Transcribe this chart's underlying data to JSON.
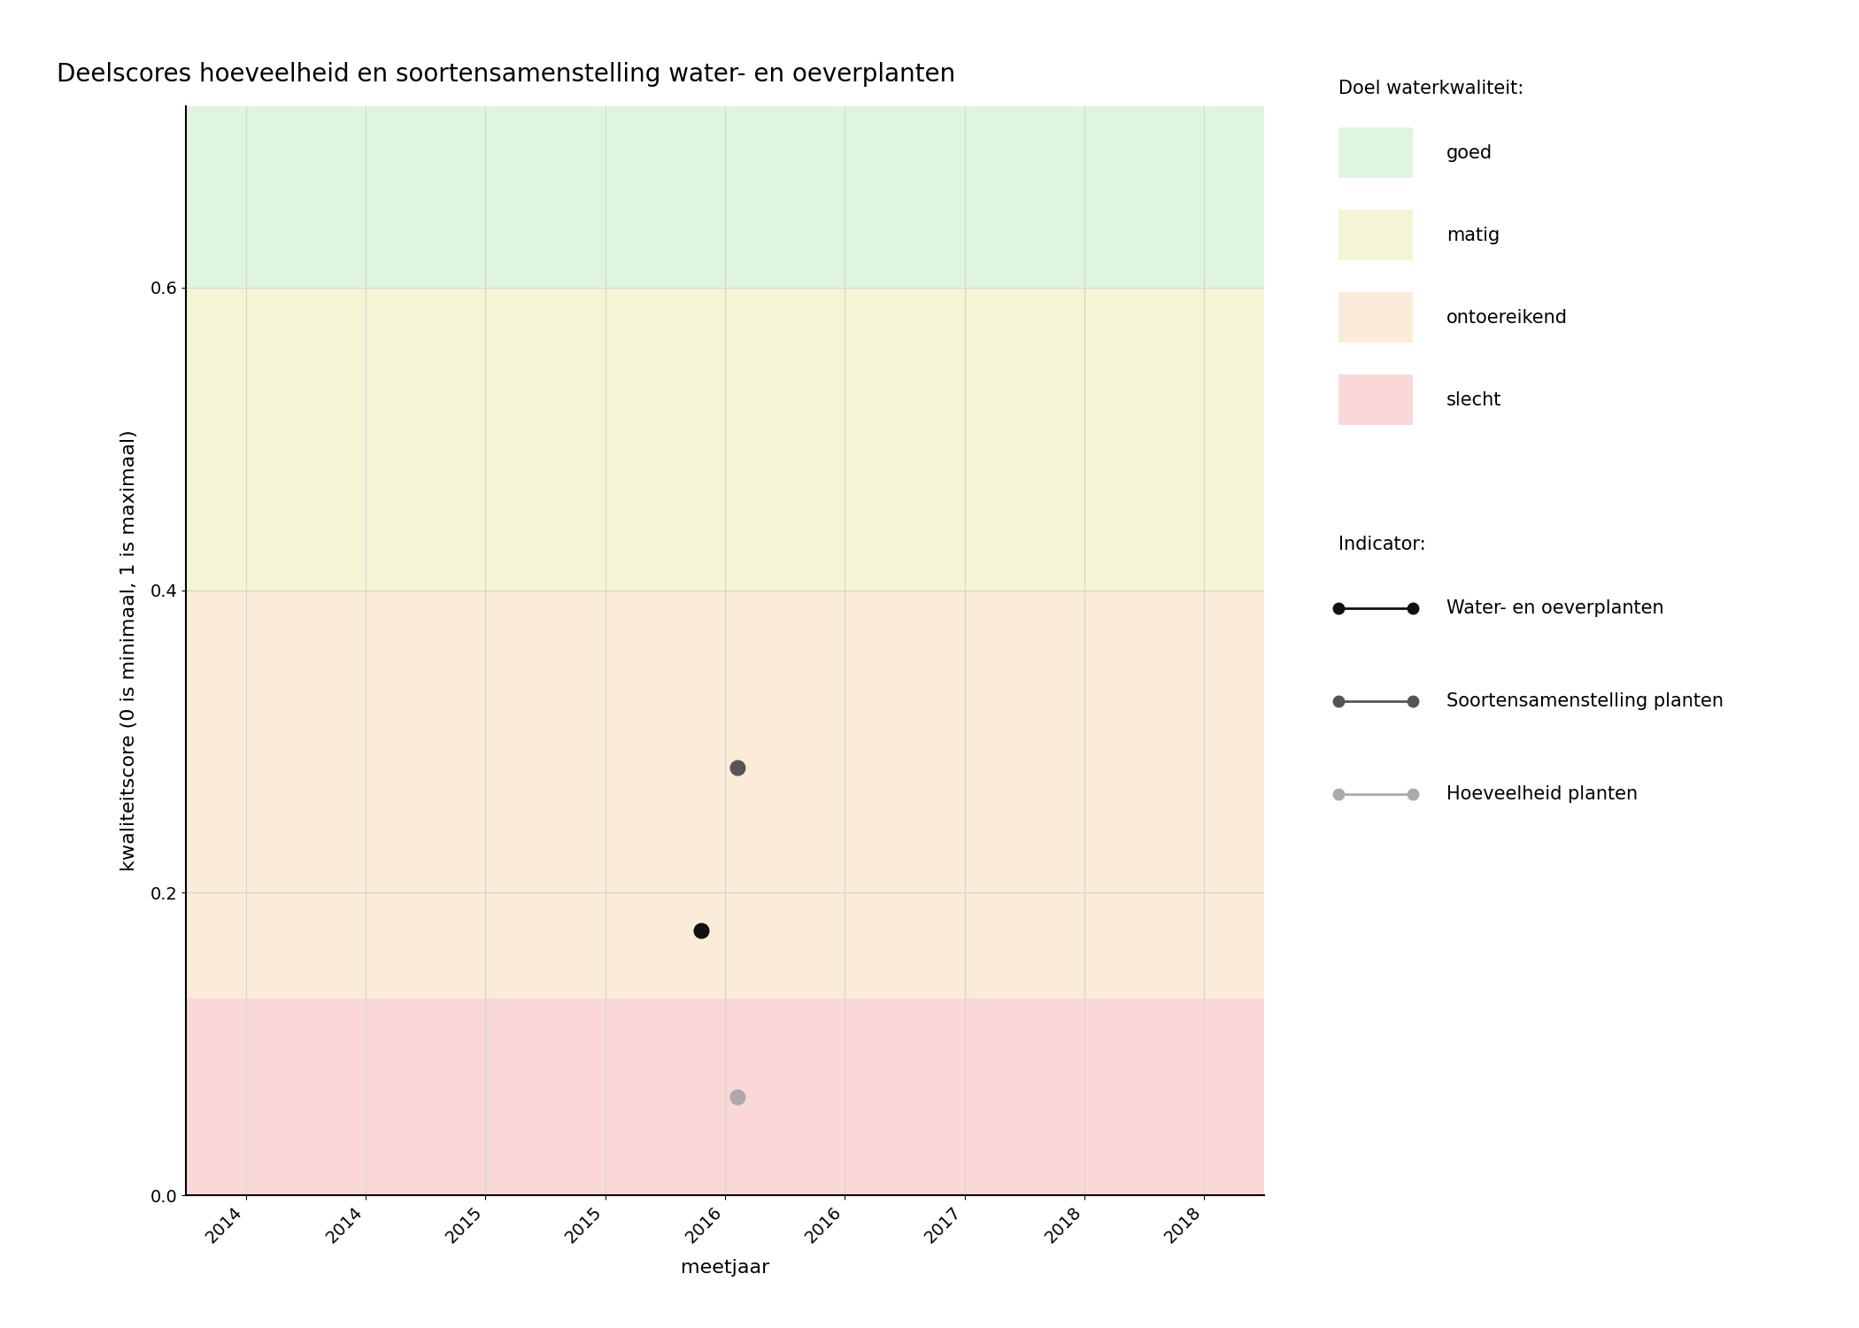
{
  "title": "Deelscores hoeveelheid en soortensamenstelling water- en oeverplanten",
  "xlabel": "meetjaar",
  "ylabel": "kwaliteitscore (0 is minimaal, 1 is maximaal)",
  "xlim": [
    2013.75,
    2018.25
  ],
  "ylim": [
    0.0,
    0.72
  ],
  "yticks": [
    0.0,
    0.2,
    0.4,
    0.6
  ],
  "xticks": [
    2014,
    2014.5,
    2015,
    2015.5,
    2016,
    2016.5,
    2017,
    2017.5,
    2018
  ],
  "xtick_labels": [
    "2014",
    "2014",
    "2015",
    "2015",
    "2016",
    "2016",
    "2017",
    "2018",
    "2018"
  ],
  "background_color": "#ffffff",
  "zone_good_min": 0.6,
  "zone_good_max": 0.72,
  "zone_good_color": "#e0f5e0",
  "zone_matig_min": 0.4,
  "zone_matig_max": 0.6,
  "zone_matig_color": "#f5f5d5",
  "zone_ontoereikend_min": 0.13,
  "zone_ontoereikend_max": 0.4,
  "zone_ontoereikend_color": "#faecd8",
  "zone_slecht_min": 0.0,
  "zone_slecht_max": 0.13,
  "zone_slecht_color": "#fad8d8",
  "series": [
    {
      "name": "Water- en oeverplanten",
      "x": [
        2015.9
      ],
      "y": [
        0.175
      ],
      "color": "#111111",
      "markersize": 12
    },
    {
      "name": "Soortensamenstelling planten",
      "x": [
        2016.05
      ],
      "y": [
        0.283
      ],
      "color": "#555555",
      "markersize": 12
    },
    {
      "name": "Hoeveelheid planten",
      "x": [
        2016.05
      ],
      "y": [
        0.065
      ],
      "color": "#aaaaaa",
      "markersize": 12
    }
  ],
  "legend_title_quality": "Doel waterkwaliteit:",
  "legend_title_indicator": "Indicator:",
  "legend_quality_labels": [
    "goed",
    "matig",
    "ontoereikend",
    "slecht"
  ],
  "legend_quality_colors": [
    "#e0f5e0",
    "#f5f5d5",
    "#faecd8",
    "#fad8d8"
  ],
  "grid_color": "#d0d8d0",
  "title_fontsize": 20,
  "label_fontsize": 16,
  "tick_fontsize": 14,
  "legend_fontsize": 15
}
